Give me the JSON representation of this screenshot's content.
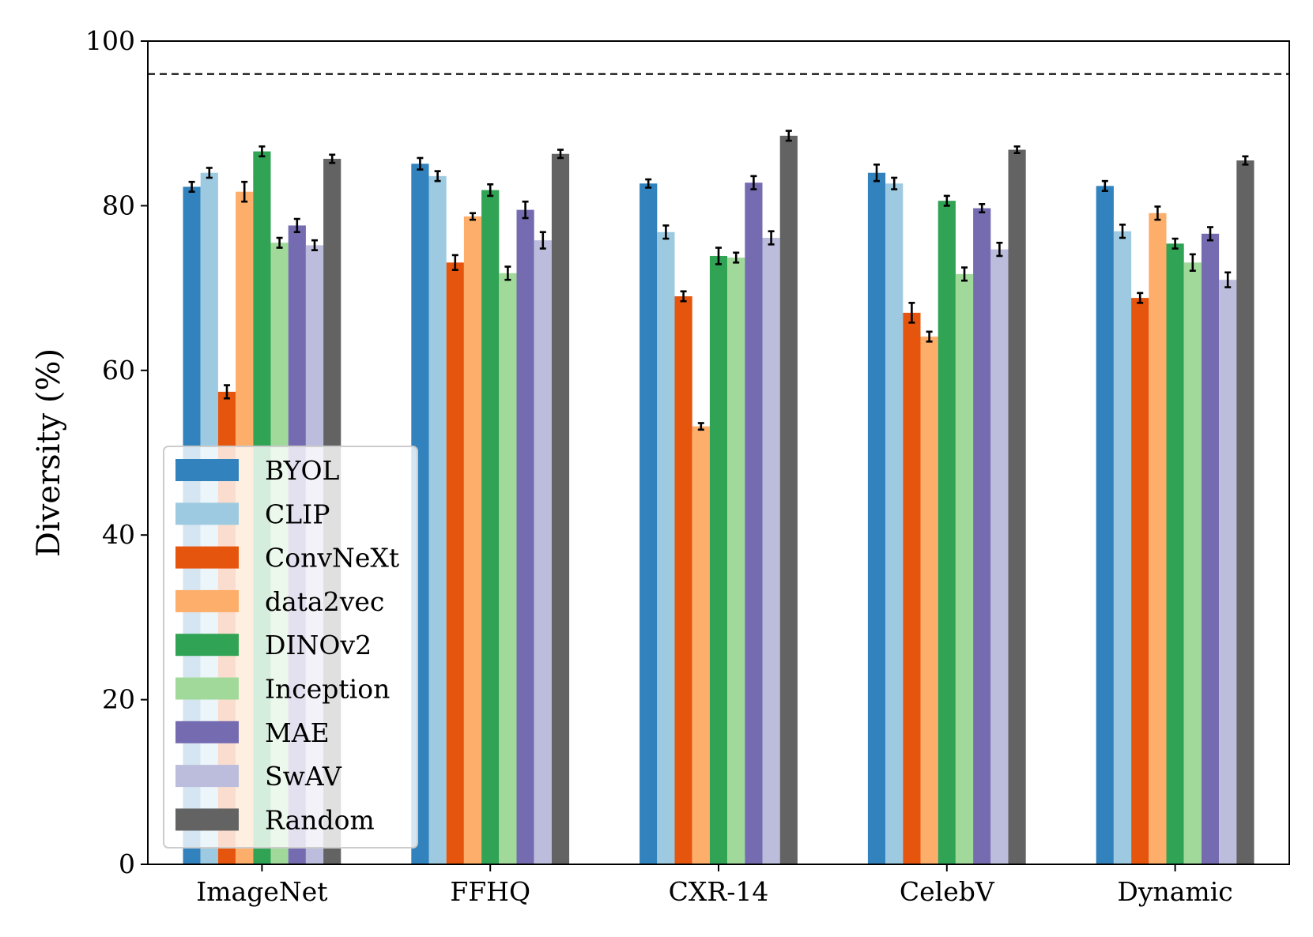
{
  "chart_data": {
    "type": "bar",
    "title": "",
    "xlabel": "",
    "ylabel": "Diversity (%)",
    "ylim": [
      0,
      100
    ],
    "yticks": [
      0,
      20,
      40,
      60,
      80,
      100
    ],
    "grid": false,
    "legend_position": "bottom-left",
    "categories": [
      "ImageNet",
      "FFHQ",
      "CXR-14",
      "CelebV",
      "Dynamic"
    ],
    "reference_line": {
      "value": 96,
      "style": "dashed",
      "color": "#000000"
    },
    "series": [
      {
        "name": "BYOL",
        "color": "#3182bd",
        "values": [
          82.3,
          85.1,
          82.7,
          84.0,
          82.4
        ],
        "errors": [
          0.6,
          0.7,
          0.5,
          1.0,
          0.6
        ]
      },
      {
        "name": "CLIP",
        "color": "#9ecae1",
        "values": [
          84.0,
          83.6,
          76.8,
          82.7,
          76.9
        ],
        "errors": [
          0.6,
          0.6,
          0.8,
          0.7,
          0.8
        ]
      },
      {
        "name": "ConvNeXt",
        "color": "#e6550d",
        "values": [
          57.4,
          73.1,
          69.0,
          67.0,
          68.8
        ],
        "errors": [
          0.8,
          0.9,
          0.6,
          1.2,
          0.6
        ]
      },
      {
        "name": "data2vec",
        "color": "#fdae6b",
        "values": [
          81.7,
          78.7,
          53.2,
          64.1,
          79.1
        ],
        "errors": [
          1.2,
          0.4,
          0.4,
          0.6,
          0.8
        ]
      },
      {
        "name": "DINOv2",
        "color": "#31a354",
        "values": [
          86.6,
          81.9,
          73.9,
          80.6,
          75.4
        ],
        "errors": [
          0.6,
          0.7,
          1.0,
          0.6,
          0.6
        ]
      },
      {
        "name": "Inception",
        "color": "#a1d99b",
        "values": [
          75.5,
          71.8,
          73.7,
          71.7,
          73.1
        ],
        "errors": [
          0.6,
          0.8,
          0.6,
          0.8,
          1.0
        ]
      },
      {
        "name": "MAE",
        "color": "#756bb1",
        "values": [
          77.6,
          79.5,
          82.8,
          79.7,
          76.6
        ],
        "errors": [
          0.8,
          1.0,
          0.8,
          0.5,
          0.8
        ]
      },
      {
        "name": "SwAV",
        "color": "#bcbddc",
        "values": [
          75.2,
          75.8,
          76.1,
          74.7,
          71.0
        ],
        "errors": [
          0.6,
          1.0,
          0.8,
          0.8,
          0.9
        ]
      },
      {
        "name": "Random",
        "color": "#636363",
        "values": [
          85.7,
          86.3,
          88.5,
          86.8,
          85.5
        ],
        "errors": [
          0.5,
          0.5,
          0.6,
          0.4,
          0.5
        ]
      }
    ]
  }
}
